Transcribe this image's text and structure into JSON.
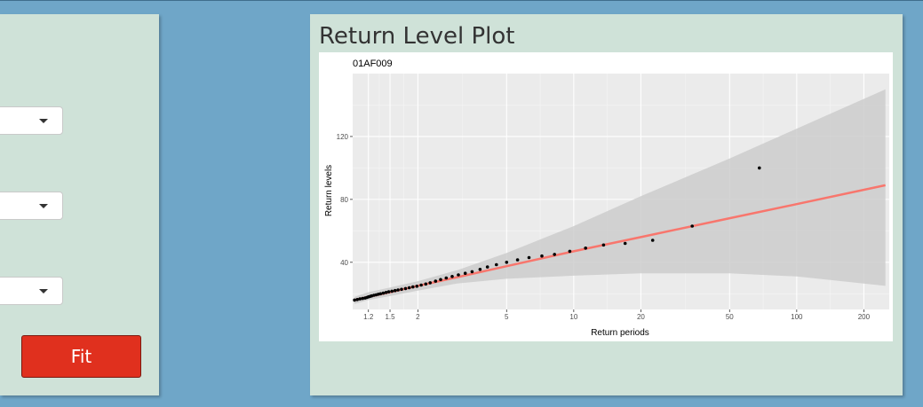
{
  "right_panel": {
    "title": "Return Level Plot"
  },
  "left_panel": {
    "fit_label": "Fit"
  },
  "chart_data": {
    "type": "scatter",
    "title": "01AF009",
    "xlabel": "Return periods",
    "ylabel": "Return levels",
    "x_scale": "log",
    "xlim": [
      1.02,
      260
    ],
    "ylim": [
      10,
      160
    ],
    "x_ticks": [
      1.2,
      1.5,
      2,
      5,
      10,
      20,
      50,
      100,
      200
    ],
    "x_tick_labels": [
      "1.2",
      "1.5",
      "2",
      "5",
      "10",
      "20",
      "50",
      "100",
      "200"
    ],
    "y_ticks": [
      40,
      80,
      120
    ],
    "y_tick_labels": [
      "40",
      "80",
      "120"
    ],
    "grid": true,
    "colors": {
      "fit_line": "#f8766d",
      "points": "#000000",
      "ci_band": "#cccccc",
      "panel_bg": "#ebebeb"
    },
    "fit_line": {
      "x": [
        1.04,
        1.2,
        1.5,
        2,
        3,
        5,
        10,
        20,
        50,
        100,
        250
      ],
      "y": [
        16,
        18,
        21,
        25,
        30.5,
        37.5,
        47,
        56,
        68,
        77,
        89
      ]
    },
    "confidence_band": {
      "x": [
        1.04,
        1.2,
        1.5,
        2,
        3,
        5,
        10,
        20,
        50,
        100,
        250
      ],
      "lower": [
        13.5,
        16,
        18.5,
        22,
        26.5,
        29.5,
        31.5,
        33,
        33,
        31,
        25
      ],
      "upper": [
        18,
        21,
        24,
        28,
        35,
        46,
        63,
        82,
        106,
        125,
        150
      ]
    },
    "points": {
      "x": [
        1.04,
        1.07,
        1.1,
        1.13,
        1.16,
        1.18,
        1.2,
        1.22,
        1.24,
        1.27,
        1.3,
        1.33,
        1.36,
        1.4,
        1.44,
        1.48,
        1.53,
        1.58,
        1.63,
        1.69,
        1.76,
        1.83,
        1.9,
        1.98,
        2.07,
        2.17,
        2.27,
        2.4,
        2.53,
        2.68,
        2.85,
        3.04,
        3.26,
        3.5,
        3.8,
        4.1,
        4.5,
        5.0,
        5.6,
        6.3,
        7.2,
        8.2,
        9.6,
        11.3,
        13.6,
        17.0,
        22.6,
        34.0,
        68.0
      ],
      "y": [
        16,
        16.3,
        16.7,
        17,
        17.3,
        17.6,
        18,
        18.3,
        18.6,
        19,
        19.3,
        19.7,
        20,
        20.4,
        20.8,
        21.2,
        21.6,
        22,
        22.4,
        22.8,
        23.3,
        23.8,
        24.3,
        24.8,
        25.5,
        26.2,
        27,
        28,
        29,
        30,
        31,
        32,
        33,
        34,
        35.5,
        37,
        38.5,
        40,
        41.5,
        43,
        44,
        45,
        47,
        49,
        51,
        52,
        54,
        63,
        100
      ]
    }
  }
}
